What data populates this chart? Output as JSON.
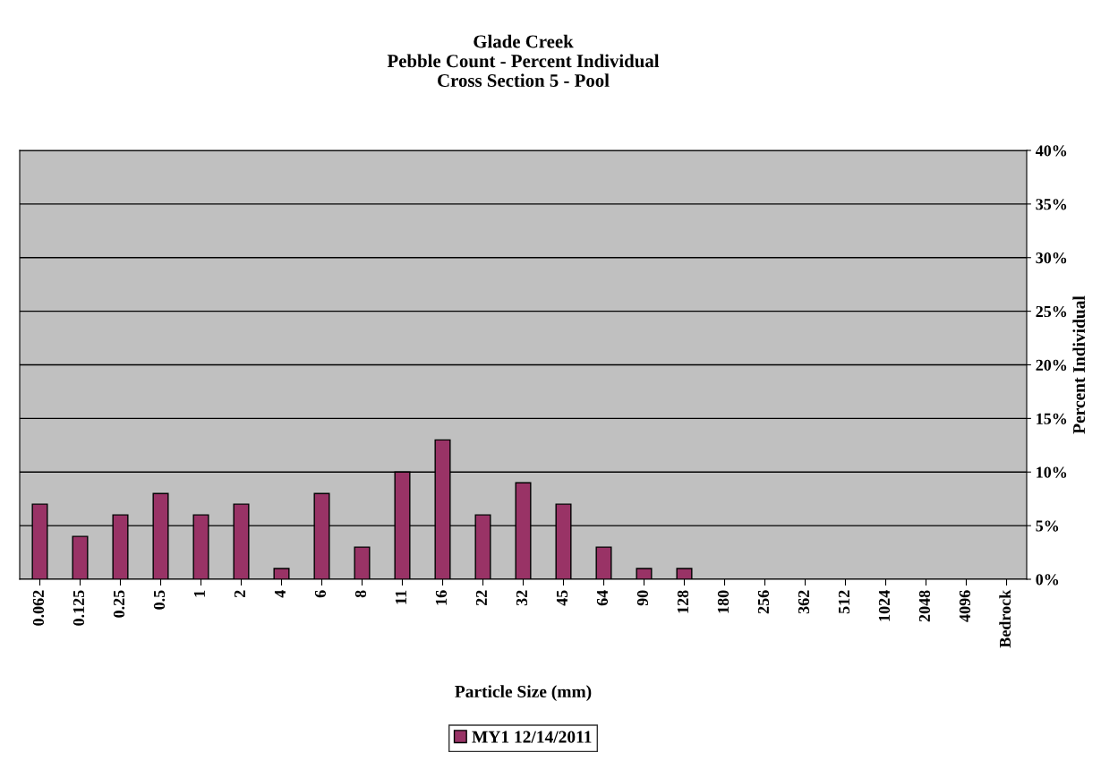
{
  "chart_data": {
    "type": "bar",
    "title": "Glade Creek\nPebble Count - Percent Individual\nCross Section 5 - Pool",
    "xlabel": "Particle Size (mm)",
    "ylabel": "Percent Individual",
    "categories": [
      "0.062",
      "0.125",
      "0.25",
      "0.5",
      "1",
      "2",
      "4",
      "6",
      "8",
      "11",
      "16",
      "22",
      "32",
      "45",
      "64",
      "90",
      "128",
      "180",
      "256",
      "362",
      "512",
      "1024",
      "2048",
      "4096",
      "Bedrock"
    ],
    "series": [
      {
        "name": "MY1 12/14/2011",
        "color": "#993366",
        "values": [
          7,
          4,
          6,
          8,
          6,
          7,
          1,
          8,
          3,
          10,
          13,
          6,
          9,
          7,
          3,
          1,
          1,
          0,
          0,
          0,
          0,
          0,
          0,
          0,
          0
        ]
      }
    ],
    "ylim": [
      0,
      40
    ],
    "yticks": [
      {
        "value": 0,
        "label": "0%"
      },
      {
        "value": 5,
        "label": "5%"
      },
      {
        "value": 10,
        "label": "10%"
      },
      {
        "value": 15,
        "label": "15%"
      },
      {
        "value": 20,
        "label": "20%"
      },
      {
        "value": 25,
        "label": "25%"
      },
      {
        "value": 30,
        "label": "30%"
      },
      {
        "value": 35,
        "label": "35%"
      },
      {
        "value": 40,
        "label": "40%"
      }
    ],
    "grid": "y",
    "legend": "bottom"
  }
}
